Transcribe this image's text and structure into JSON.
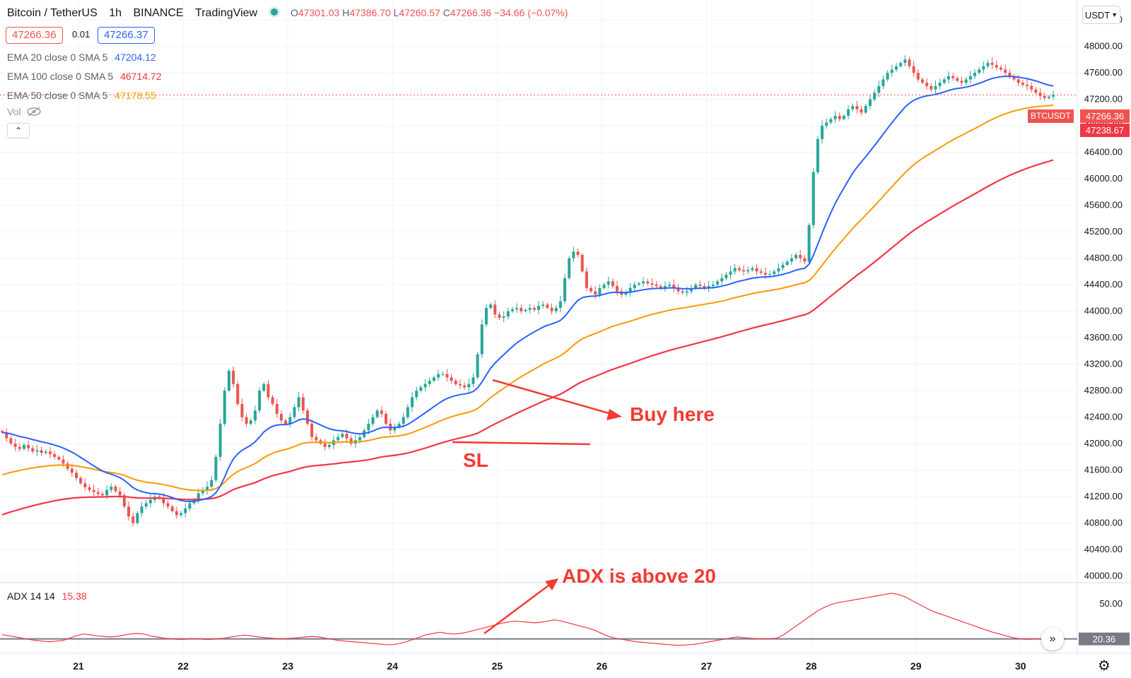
{
  "header": {
    "symbol": "Bitcoin / TetherUS",
    "interval": "1h",
    "exchange": "BINANCE",
    "provider": "TradingView",
    "o_label": "O",
    "o_value": "47301.03",
    "h_label": "H",
    "h_value": "47386.70",
    "l_label": "L",
    "l_value": "47260.57",
    "c_label": "C",
    "c_value": "47266.36",
    "change": "−34.66 (−0.07%)"
  },
  "quote": {
    "bid": "47266.36",
    "spread": "0.01",
    "ask": "47266.37"
  },
  "indicators": [
    {
      "label": "EMA 20 close 0 SMA 5",
      "value": "47204.12",
      "color": "#2962ff"
    },
    {
      "label": "EMA 100 close 0 SMA 5",
      "value": "46714.72",
      "color": "#f23645"
    },
    {
      "label": "EMA 50 close 0 SMA 5",
      "value": "47178.55",
      "color": "#ff9800"
    }
  ],
  "volume_label": "Vol",
  "currency": "USDT",
  "adx": {
    "label": "ADX 14 14",
    "value": "15.38",
    "level_tag": "20.36",
    "axis_label": "50.00"
  },
  "price_tags": {
    "last": "47266.36",
    "ema_tag": "47238.67",
    "symbol_tag": "BTCUSDT"
  },
  "annotations": {
    "buy": "Buy here",
    "sl": "SL",
    "adx_note": "ADX is above 20"
  },
  "chart_data": {
    "type": "candlestick",
    "y_ticks": [
      "40000.00",
      "40400.00",
      "40800.00",
      "41200.00",
      "41600.00",
      "42000.00",
      "42400.00",
      "42800.00",
      "43200.00",
      "43600.00",
      "44000.00",
      "44400.00",
      "44800.00",
      "45200.00",
      "45600.00",
      "46000.00",
      "46400.00",
      "46800.00",
      "47200.00",
      "47600.00",
      "48000.00",
      "48400.00"
    ],
    "ylim": [
      39900,
      48700
    ],
    "x_ticks": [
      "21",
      "22",
      "23",
      "24",
      "25",
      "26",
      "27",
      "28",
      "29",
      "30"
    ],
    "x_ticks_hours": [
      18,
      42,
      66,
      90,
      114,
      138,
      162,
      186,
      210,
      234
    ],
    "xlim": [
      0,
      247
    ],
    "close": [
      42170,
      42080,
      42000,
      41950,
      41920,
      41980,
      41930,
      41880,
      41900,
      41860,
      41880,
      41840,
      41800,
      41760,
      41700,
      41620,
      41560,
      41480,
      41400,
      41340,
      41300,
      41270,
      41240,
      41220,
      41300,
      41350,
      41280,
      41220,
      41050,
      40900,
      40800,
      40950,
      41050,
      41100,
      41150,
      41200,
      41180,
      41100,
      41050,
      40980,
      40920,
      40950,
      41020,
      41100,
      41150,
      41250,
      41300,
      41350,
      41450,
      41800,
      42300,
      42800,
      43100,
      42900,
      42600,
      42400,
      42300,
      42350,
      42500,
      42800,
      42900,
      42700,
      42600,
      42450,
      42350,
      42300,
      42400,
      42550,
      42700,
      42500,
      42300,
      42100,
      42050,
      42000,
      41950,
      41980,
      42050,
      42100,
      42150,
      42080,
      42000,
      42050,
      42100,
      42200,
      42300,
      42400,
      42500,
      42450,
      42300,
      42200,
      42250,
      42300,
      42400,
      42550,
      42700,
      42800,
      42850,
      42900,
      42950,
      43000,
      43050,
      43050,
      43000,
      42950,
      42900,
      42880,
      42850,
      42900,
      43000,
      43350,
      43800,
      44050,
      44100,
      43950,
      43900,
      43920,
      44000,
      44030,
      44050,
      44000,
      44020,
      44050,
      44020,
      44080,
      44100,
      44050,
      44000,
      44050,
      44150,
      44500,
      44800,
      44900,
      44850,
      44600,
      44350,
      44300,
      44250,
      44350,
      44400,
      44450,
      44380,
      44300,
      44250,
      44280,
      44350,
      44400,
      44420,
      44450,
      44420,
      44400,
      44380,
      44350,
      44380,
      44400,
      44350,
      44300,
      44280,
      44300,
      44350,
      44400,
      44380,
      44350,
      44380,
      44400,
      44450,
      44500,
      44550,
      44600,
      44650,
      44620,
      44600,
      44620,
      44650,
      44600,
      44580,
      44550,
      44560,
      44600,
      44650,
      44700,
      44750,
      44800,
      44850,
      44800,
      44750,
      45300,
      46100,
      46600,
      46800,
      46850,
      46900,
      46950,
      46900,
      46950,
      47050,
      47100,
      47050,
      47000,
      47100,
      47200,
      47300,
      47400,
      47500,
      47600,
      47650,
      47700,
      47750,
      47800,
      47700,
      47600,
      47500,
      47450,
      47400,
      47350,
      47400,
      47450,
      47500,
      47550,
      47520,
      47480,
      47450,
      47500,
      47550,
      47600,
      47650,
      47700,
      47750,
      47720,
      47680,
      47650,
      47600,
      47550,
      47500,
      47450,
      47420,
      47400,
      47350,
      47300,
      47250,
      47220,
      47240,
      47266.36
    ],
    "series": [
      {
        "name": "EMA 20",
        "color": "#2962ff",
        "period": 20
      },
      {
        "name": "EMA 50",
        "color": "#ff9800",
        "period": 50
      },
      {
        "name": "EMA 100",
        "color": "#f23645",
        "period": 100
      }
    ],
    "adx_ticks": [
      "50.00"
    ],
    "adx_level": 20.36,
    "adx_values": [
      24,
      23,
      22,
      21,
      20,
      19,
      18.5,
      18,
      18.5,
      19,
      21,
      23,
      24.5,
      24,
      23,
      22.5,
      22,
      22.5,
      23.5,
      24.5,
      25,
      24.5,
      23,
      22,
      21,
      20.5,
      20,
      20,
      20.5,
      20.5,
      20,
      20,
      20.5,
      21,
      22,
      23,
      23.5,
      23,
      22,
      21.5,
      21,
      20.5,
      20.5,
      21,
      21.5,
      22,
      22.5,
      22,
      21,
      20,
      19,
      18.5,
      18,
      17.5,
      17,
      16.5,
      16,
      15.5,
      15.5,
      16.5,
      18,
      20,
      22,
      24,
      25,
      26,
      25,
      24.5,
      25,
      26,
      27.5,
      29,
      30.5,
      32,
      33.5,
      34.5,
      35.5,
      35,
      34.5,
      34,
      34.5,
      35.5,
      36.5,
      35.5,
      34,
      32.5,
      31,
      29.5,
      27.5,
      25,
      22.5,
      21,
      20,
      19,
      18,
      17.5,
      17,
      16.5,
      16,
      15.5,
      15,
      15,
      15.5,
      16,
      17,
      18,
      19,
      20,
      21,
      22,
      21.5,
      21,
      20.5,
      20.5,
      20.5,
      21,
      24,
      28,
      32,
      36,
      40,
      44,
      47,
      49.5,
      51,
      52,
      53,
      54,
      55,
      56,
      57,
      58,
      59,
      58,
      56,
      53,
      50,
      47,
      44,
      42,
      40,
      38,
      36,
      34,
      32,
      30,
      28,
      26,
      24.5,
      23,
      21.5,
      20.5,
      20,
      20.2,
      20.4,
      20.5,
      20.6
    ]
  }
}
